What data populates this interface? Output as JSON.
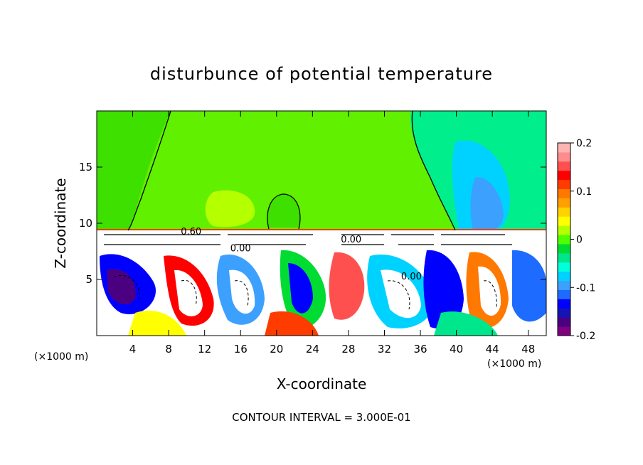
{
  "chart_data": {
    "type": "heatmap",
    "title": "disturbunce of potential temperature",
    "xlabel": "X-coordinate",
    "ylabel": "Z-coordinate",
    "x_unit_label": "(×1000 m)",
    "z_unit_label": "(×1000 m)",
    "xlim": [
      0,
      50
    ],
    "ylim": [
      0,
      20
    ],
    "x_ticks": [
      4,
      8,
      12,
      16,
      20,
      24,
      28,
      32,
      36,
      40,
      44,
      48
    ],
    "y_ticks": [
      5,
      10,
      15
    ],
    "footer": "CONTOUR INTERVAL = 3.000E-01",
    "contour_labels": [
      {
        "text": "0.60",
        "x": 10.5,
        "y": 9.0
      },
      {
        "text": "0.00",
        "x": 16.0,
        "y": 7.5
      },
      {
        "text": "0.00",
        "x": 28.3,
        "y": 8.3
      },
      {
        "text": "0.00",
        "x": 35.0,
        "y": 5.0
      }
    ],
    "colorbar": {
      "range": [
        -0.2,
        0.2
      ],
      "tick_labels": [
        "0.2",
        "0.1",
        "0",
        "-0.1",
        "-0.2"
      ],
      "tick_values": [
        0.2,
        0.1,
        0,
        -0.1,
        -0.2
      ],
      "colors": [
        "#800080",
        "#4b0082",
        "#1414b4",
        "#0000ff",
        "#1e6bff",
        "#3ca0ff",
        "#00d2ff",
        "#00ffdc",
        "#00e68c",
        "#00dc32",
        "#50ff00",
        "#b4ff00",
        "#ffff00",
        "#ffd200",
        "#ffa000",
        "#ff7800",
        "#ff3c00",
        "#ff0000",
        "#ff5050",
        "#ff8c8c",
        "#ffb4b4"
      ]
    }
  }
}
